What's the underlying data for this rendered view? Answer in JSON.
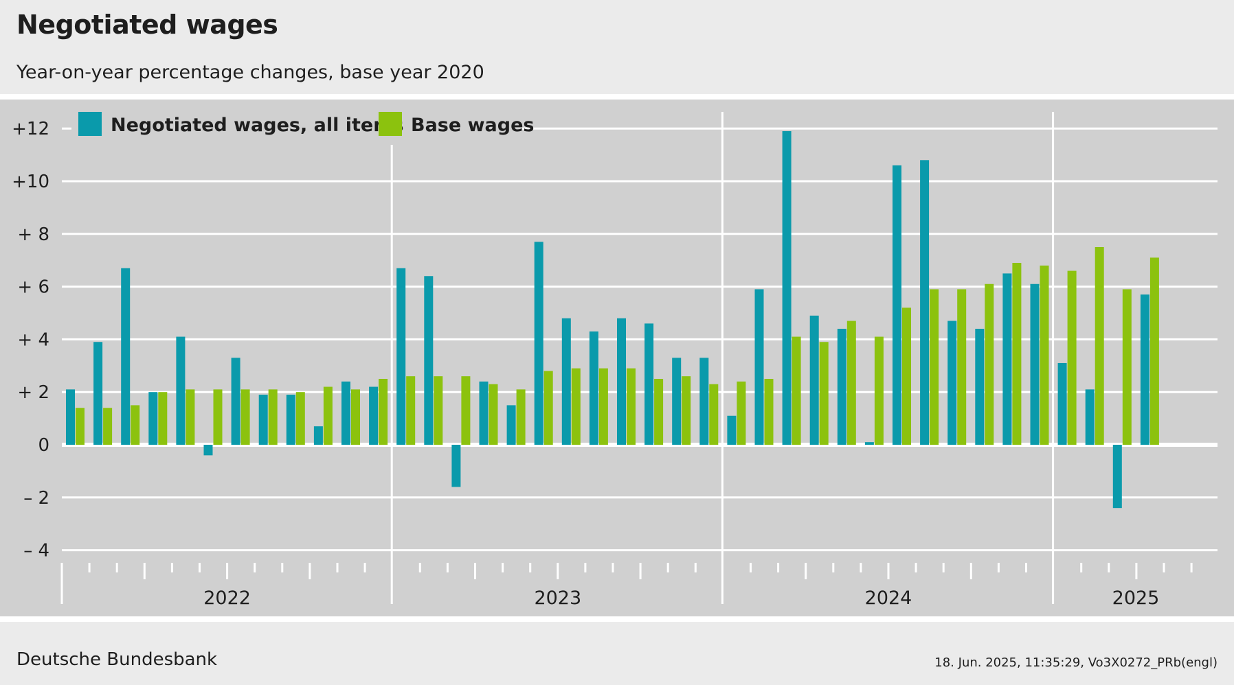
{
  "title": "Negotiated wages",
  "subtitle": "Year-on-year percentage changes, base year 2020",
  "footer": {
    "source": "Deutsche Bundesbank",
    "stamp": "18. Jun. 2025, 11:35:29, Vo3X0272_PRb(engl)"
  },
  "colors": {
    "series1": "#0a9aab",
    "series2": "#8cc20e",
    "background": "#d0d0d0",
    "grid": "#ffffff"
  },
  "chart_data": {
    "type": "bar",
    "title": "Negotiated wages",
    "subtitle": "Year-on-year percentage changes, base year 2020",
    "xlabel": "",
    "ylabel": "",
    "ylim": [
      -4,
      12
    ],
    "yticks": [
      -4,
      -2,
      0,
      2,
      4,
      6,
      8,
      10,
      12
    ],
    "ytick_labels": [
      "– 4",
      "– 2",
      "0",
      "+ 2",
      "+ 4",
      "+ 6",
      "+ 8",
      "+10",
      "+12"
    ],
    "grid": true,
    "legend_position": "top-left",
    "year_labels": [
      "2022",
      "2023",
      "2024",
      "2025"
    ],
    "categories": [
      "Jan 2022",
      "Feb 2022",
      "Mar 2022",
      "Apr 2022",
      "May 2022",
      "Jun 2022",
      "Jul 2022",
      "Aug 2022",
      "Sep 2022",
      "Oct 2022",
      "Nov 2022",
      "Dec 2022",
      "Jan 2023",
      "Feb 2023",
      "Mar 2023",
      "Apr 2023",
      "May 2023",
      "Jun 2023",
      "Jul 2023",
      "Aug 2023",
      "Sep 2023",
      "Oct 2023",
      "Nov 2023",
      "Dec 2023",
      "Jan 2024",
      "Feb 2024",
      "Mar 2024",
      "Apr 2024",
      "May 2024",
      "Jun 2024",
      "Jul 2024",
      "Aug 2024",
      "Sep 2024",
      "Oct 2024",
      "Nov 2024",
      "Dec 2024",
      "Jan 2025",
      "Feb 2025",
      "Mar 2025",
      "Apr 2025"
    ],
    "series": [
      {
        "name": "Negotiated wages, all items",
        "values": [
          2.1,
          3.9,
          6.7,
          2.0,
          4.1,
          -0.4,
          3.3,
          1.9,
          1.9,
          0.7,
          2.4,
          2.2,
          6.7,
          6.4,
          -1.6,
          2.4,
          1.5,
          7.7,
          4.8,
          4.3,
          4.8,
          4.6,
          3.3,
          3.3,
          1.1,
          5.9,
          11.9,
          4.9,
          4.4,
          0.1,
          10.6,
          10.8,
          4.7,
          4.4,
          6.5,
          6.1,
          3.1,
          2.1,
          -2.4,
          5.7
        ]
      },
      {
        "name": "Base wages",
        "values": [
          1.4,
          1.4,
          1.5,
          2.0,
          2.1,
          2.1,
          2.1,
          2.1,
          2.0,
          2.2,
          2.1,
          2.5,
          2.6,
          2.6,
          2.6,
          2.3,
          2.1,
          2.8,
          2.9,
          2.9,
          2.9,
          2.5,
          2.6,
          2.3,
          2.4,
          2.5,
          4.1,
          3.9,
          4.7,
          4.1,
          5.2,
          5.9,
          5.9,
          6.1,
          6.9,
          6.8,
          6.6,
          7.5,
          5.9,
          7.1
        ]
      }
    ]
  }
}
